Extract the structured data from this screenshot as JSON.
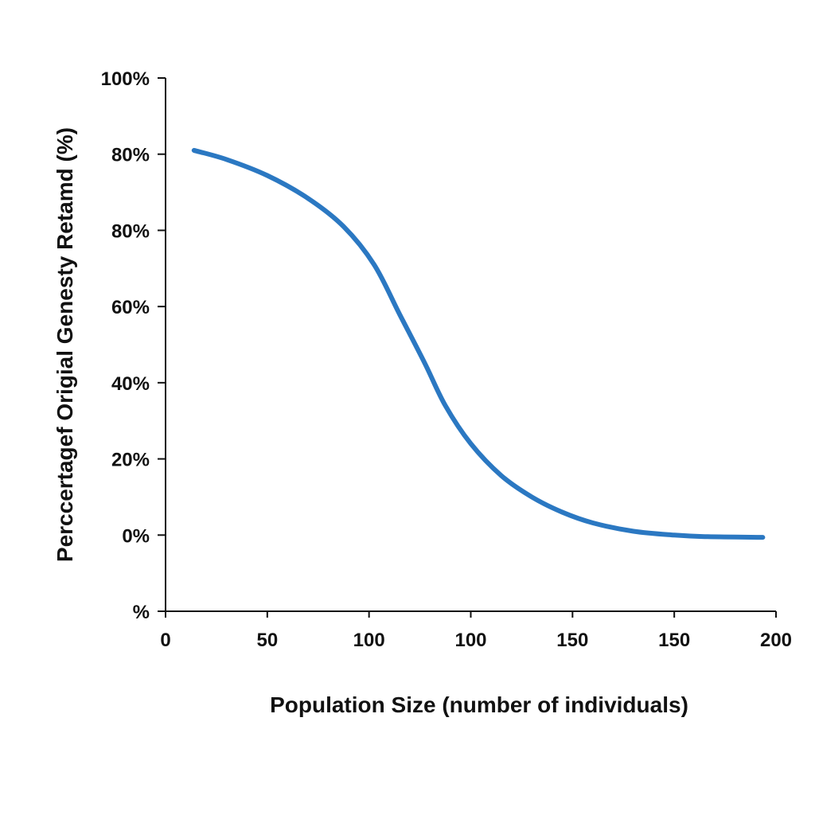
{
  "chart_data": {
    "type": "line",
    "title": "",
    "xlabel": "Population Size (number of individuals)",
    "ylabel": "Perccertagef Origial Genesty Retamd (%)",
    "x_ticks": [
      "0",
      "50",
      "100",
      "100",
      "150",
      "150",
      "200"
    ],
    "y_ticks": [
      "%",
      "0%",
      "20%",
      "40%",
      "60%",
      "80%",
      "80%",
      "100%"
    ],
    "xlim": [
      0,
      6
    ],
    "ylim": [
      0,
      7
    ],
    "grid": false,
    "legend": "none",
    "series": [
      {
        "color": "#2b78c2",
        "points": [
          [
            0.28,
            6.05
          ],
          [
            0.6,
            5.93
          ],
          [
            1.0,
            5.72
          ],
          [
            1.4,
            5.42
          ],
          [
            1.75,
            5.05
          ],
          [
            2.05,
            4.55
          ],
          [
            2.3,
            3.9
          ],
          [
            2.55,
            3.25
          ],
          [
            2.75,
            2.7
          ],
          [
            3.0,
            2.2
          ],
          [
            3.3,
            1.78
          ],
          [
            3.6,
            1.5
          ],
          [
            3.9,
            1.3
          ],
          [
            4.2,
            1.16
          ],
          [
            4.6,
            1.05
          ],
          [
            5.0,
            1.0
          ],
          [
            5.3,
            0.98
          ],
          [
            5.87,
            0.97
          ]
        ]
      }
    ]
  }
}
